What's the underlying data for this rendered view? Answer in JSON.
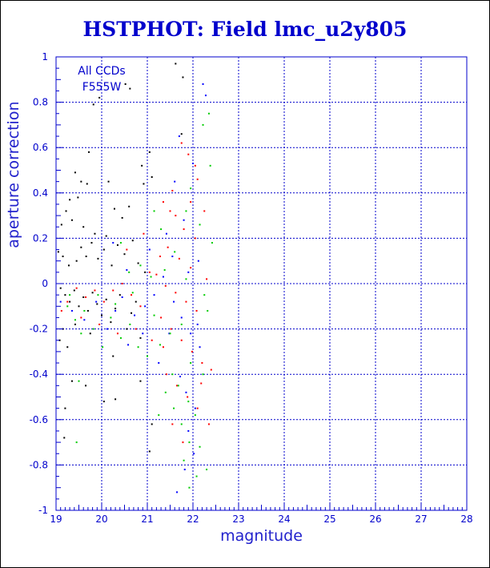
{
  "title": "HSTPHOT: Field lmc_u2y805",
  "colors": {
    "axis": "#0000cc",
    "grid": "#0000cc",
    "title": "#0000cc",
    "series": [
      "#000000",
      "#0000ff",
      "#ff0000",
      "#00cc00"
    ]
  },
  "chart_data": {
    "type": "scatter",
    "title": "HSTPHOT: Field lmc_u2y805",
    "xlabel": "magnitude",
    "ylabel": "aperture correction",
    "xlim": [
      19,
      28
    ],
    "ylim": [
      -1,
      1
    ],
    "xticks": [
      19,
      20,
      21,
      22,
      23,
      24,
      25,
      26,
      27,
      28
    ],
    "yticks": [
      -1,
      -0.8,
      -0.6,
      -0.4,
      -0.2,
      0,
      0.2,
      0.4,
      0.6,
      0.8,
      1
    ],
    "grid": true,
    "annotation": [
      "All CCDs",
      "F555W"
    ],
    "series": [
      {
        "color": "#000000",
        "points": [
          [
            21.62,
            0.97
          ],
          [
            21.78,
            0.91
          ],
          [
            20.52,
            0.88
          ],
          [
            20.62,
            0.86
          ],
          [
            19.82,
            0.79
          ],
          [
            19.95,
            0.82
          ],
          [
            19.42,
            0.49
          ],
          [
            19.55,
            0.45
          ],
          [
            19.68,
            0.44
          ],
          [
            19.3,
            0.37
          ],
          [
            19.48,
            0.38
          ],
          [
            19.22,
            0.32
          ],
          [
            19.12,
            0.26
          ],
          [
            19.35,
            0.28
          ],
          [
            19.6,
            0.25
          ],
          [
            19.85,
            0.22
          ],
          [
            20.1,
            0.21
          ],
          [
            20.28,
            0.33
          ],
          [
            20.45,
            0.29
          ],
          [
            20.6,
            0.34
          ],
          [
            20.88,
            0.52
          ],
          [
            20.92,
            0.44
          ],
          [
            21.1,
            0.47
          ],
          [
            21.75,
            0.66
          ],
          [
            21.05,
            0.58
          ],
          [
            20.15,
            0.45
          ],
          [
            19.72,
            0.58
          ],
          [
            19.05,
            0.14
          ],
          [
            19.15,
            0.12
          ],
          [
            19.28,
            0.08
          ],
          [
            19.45,
            0.1
          ],
          [
            19.55,
            0.16
          ],
          [
            19.66,
            0.12
          ],
          [
            19.78,
            0.18
          ],
          [
            19.92,
            0.11
          ],
          [
            20.05,
            0.15
          ],
          [
            20.22,
            0.08
          ],
          [
            20.35,
            0.17
          ],
          [
            20.5,
            0.13
          ],
          [
            20.68,
            0.19
          ],
          [
            20.8,
            0.09
          ],
          [
            20.95,
            0.05
          ],
          [
            19.1,
            -0.02
          ],
          [
            19.2,
            -0.05
          ],
          [
            19.3,
            -0.08
          ],
          [
            19.4,
            -0.03
          ],
          [
            19.5,
            -0.1
          ],
          [
            19.6,
            -0.06
          ],
          [
            19.7,
            -0.12
          ],
          [
            19.8,
            -0.04
          ],
          [
            19.9,
            -0.09
          ],
          [
            20.0,
            -0.14
          ],
          [
            20.1,
            -0.07
          ],
          [
            20.2,
            -0.17
          ],
          [
            20.3,
            -0.11
          ],
          [
            20.4,
            -0.05
          ],
          [
            20.55,
            -0.2
          ],
          [
            20.65,
            -0.13
          ],
          [
            20.75,
            -0.08
          ],
          [
            20.85,
            -0.24
          ],
          [
            19.08,
            -0.25
          ],
          [
            19.25,
            -0.28
          ],
          [
            19.35,
            -0.43
          ],
          [
            19.2,
            -0.55
          ],
          [
            19.18,
            -0.68
          ],
          [
            19.65,
            -0.45
          ],
          [
            20.05,
            -0.52
          ],
          [
            20.3,
            -0.51
          ],
          [
            20.85,
            -0.43
          ],
          [
            21.1,
            -0.62
          ],
          [
            21.05,
            -0.74
          ],
          [
            20.25,
            -0.32
          ],
          [
            19.75,
            -0.22
          ],
          [
            19.15,
            -0.2
          ],
          [
            19.42,
            -0.18
          ]
        ]
      },
      {
        "color": "#0000ff",
        "points": [
          [
            22.22,
            0.88
          ],
          [
            22.28,
            0.83
          ],
          [
            21.7,
            0.65
          ],
          [
            21.6,
            0.45
          ],
          [
            22.0,
            0.53
          ],
          [
            21.55,
            0.12
          ],
          [
            21.9,
            0.05
          ],
          [
            22.1,
            -0.18
          ],
          [
            21.48,
            -0.22
          ],
          [
            21.25,
            -0.35
          ],
          [
            21.72,
            -0.41
          ],
          [
            21.85,
            -0.48
          ],
          [
            22.05,
            -0.55
          ],
          [
            20.3,
            -0.12
          ],
          [
            20.45,
            -0.06
          ],
          [
            20.72,
            -0.14
          ],
          [
            20.9,
            -0.22
          ],
          [
            19.1,
            -0.08
          ],
          [
            19.35,
            -0.12
          ],
          [
            19.62,
            -0.16
          ],
          [
            19.88,
            -0.08
          ],
          [
            20.12,
            -0.2
          ],
          [
            20.58,
            -0.27
          ],
          [
            20.95,
            -0.1
          ],
          [
            21.15,
            -0.05
          ],
          [
            21.35,
            0.03
          ],
          [
            21.58,
            -0.08
          ],
          [
            21.75,
            -0.15
          ],
          [
            21.95,
            -0.22
          ],
          [
            22.15,
            -0.28
          ],
          [
            21.65,
            -0.92
          ],
          [
            21.82,
            -0.82
          ],
          [
            22.02,
            -0.75
          ],
          [
            21.9,
            -0.65
          ],
          [
            20.25,
            0.18
          ],
          [
            20.55,
            0.06
          ],
          [
            21.05,
            0.15
          ],
          [
            21.42,
            0.22
          ],
          [
            21.8,
            0.28
          ],
          [
            22.12,
            0.1
          ]
        ]
      },
      {
        "color": "#ff0000",
        "points": [
          [
            21.75,
            0.62
          ],
          [
            21.9,
            0.57
          ],
          [
            22.05,
            0.52
          ],
          [
            22.1,
            0.46
          ],
          [
            21.55,
            0.41
          ],
          [
            21.35,
            0.36
          ],
          [
            21.62,
            0.3
          ],
          [
            21.8,
            0.24
          ],
          [
            22.05,
            0.2
          ],
          [
            21.45,
            0.16
          ],
          [
            21.7,
            0.11
          ],
          [
            21.95,
            0.07
          ],
          [
            21.2,
            0.04
          ],
          [
            21.4,
            -0.01
          ],
          [
            21.62,
            -0.04
          ],
          [
            21.85,
            -0.08
          ],
          [
            22.08,
            -0.12
          ],
          [
            21.3,
            -0.15
          ],
          [
            21.52,
            -0.2
          ],
          [
            21.75,
            -0.25
          ],
          [
            21.98,
            -0.3
          ],
          [
            22.2,
            -0.35
          ],
          [
            21.42,
            -0.4
          ],
          [
            21.65,
            -0.45
          ],
          [
            21.88,
            -0.5
          ],
          [
            22.1,
            -0.55
          ],
          [
            22.35,
            -0.62
          ],
          [
            21.55,
            -0.62
          ],
          [
            21.78,
            -0.7
          ],
          [
            22.18,
            -0.44
          ],
          [
            22.4,
            -0.38
          ],
          [
            21.35,
            -0.28
          ],
          [
            20.45,
            0.0
          ],
          [
            20.65,
            -0.05
          ],
          [
            20.85,
            -0.1
          ],
          [
            20.25,
            -0.03
          ],
          [
            20.05,
            -0.08
          ],
          [
            19.85,
            -0.03
          ],
          [
            19.65,
            -0.06
          ],
          [
            19.45,
            -0.02
          ],
          [
            19.25,
            -0.08
          ],
          [
            19.12,
            -0.12
          ],
          [
            19.55,
            -0.15
          ],
          [
            19.95,
            -0.18
          ],
          [
            20.35,
            -0.22
          ],
          [
            20.75,
            -0.2
          ],
          [
            21.1,
            -0.25
          ],
          [
            21.05,
            0.05
          ],
          [
            21.28,
            0.12
          ],
          [
            20.55,
            0.15
          ],
          [
            20.92,
            0.22
          ],
          [
            22.25,
            0.32
          ],
          [
            21.95,
            0.36
          ],
          [
            22.3,
            0.02
          ],
          [
            21.5,
            0.32
          ]
        ]
      },
      {
        "color": "#00cc00",
        "points": [
          [
            22.35,
            0.75
          ],
          [
            22.22,
            0.7
          ],
          [
            22.38,
            0.52
          ],
          [
            21.95,
            0.42
          ],
          [
            21.85,
            0.32
          ],
          [
            22.15,
            0.26
          ],
          [
            22.42,
            0.18
          ],
          [
            21.6,
            0.14
          ],
          [
            21.38,
            0.06
          ],
          [
            21.85,
            0.02
          ],
          [
            22.25,
            -0.05
          ],
          [
            22.32,
            -0.12
          ],
          [
            21.75,
            -0.18
          ],
          [
            21.5,
            -0.22
          ],
          [
            21.28,
            -0.27
          ],
          [
            21.0,
            -0.32
          ],
          [
            21.95,
            -0.35
          ],
          [
            22.22,
            -0.4
          ],
          [
            21.68,
            -0.45
          ],
          [
            21.9,
            -0.52
          ],
          [
            22.05,
            -0.58
          ],
          [
            21.75,
            -0.62
          ],
          [
            21.92,
            -0.7
          ],
          [
            22.15,
            -0.72
          ],
          [
            21.8,
            -0.78
          ],
          [
            22.08,
            -0.85
          ],
          [
            21.92,
            -0.9
          ],
          [
            22.3,
            -0.82
          ],
          [
            20.8,
            -0.28
          ],
          [
            20.62,
            -0.18
          ],
          [
            20.42,
            -0.24
          ],
          [
            20.2,
            -0.15
          ],
          [
            20.02,
            -0.28
          ],
          [
            19.82,
            -0.2
          ],
          [
            19.62,
            -0.12
          ],
          [
            19.42,
            -0.16
          ],
          [
            19.25,
            -0.1
          ],
          [
            19.55,
            -0.22
          ],
          [
            19.92,
            -0.05
          ],
          [
            20.3,
            -0.09
          ],
          [
            20.68,
            -0.04
          ],
          [
            21.08,
            0.03
          ],
          [
            21.15,
            -0.14
          ],
          [
            21.4,
            -0.48
          ],
          [
            21.58,
            -0.55
          ],
          [
            21.25,
            -0.58
          ],
          [
            21.55,
            -0.4
          ],
          [
            19.45,
            -0.7
          ],
          [
            19.5,
            -0.43
          ],
          [
            20.42,
            0.18
          ],
          [
            20.85,
            0.08
          ],
          [
            21.3,
            0.24
          ],
          [
            21.15,
            0.32
          ],
          [
            20.6,
            0.05
          ],
          [
            19.3,
            -0.05
          ]
        ]
      }
    ]
  }
}
